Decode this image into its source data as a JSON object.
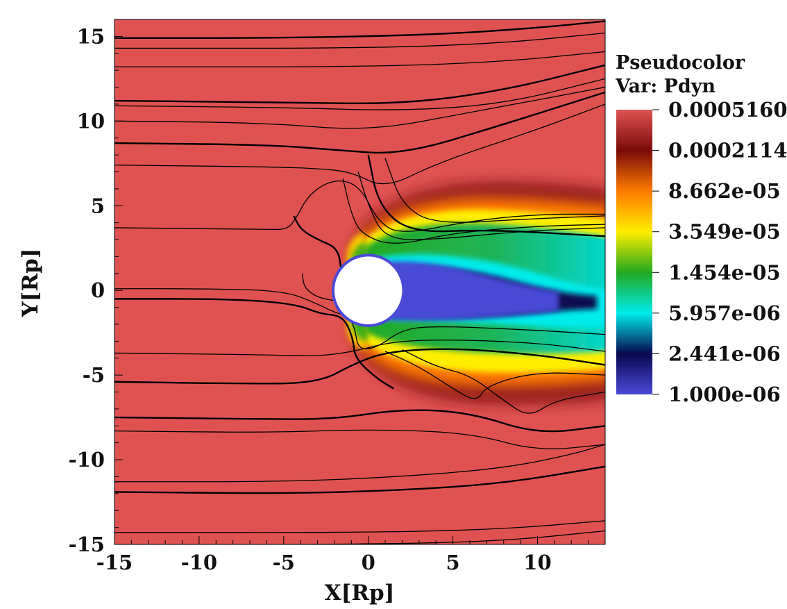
{
  "chart_data": {
    "type": "heatmap",
    "title": "Pseudocolor",
    "variable": "Var: Pdyn",
    "xlabel": "X[Rp]",
    "ylabel": "Y[Rp]",
    "xlim": [
      -15,
      14
    ],
    "ylim": [
      -15,
      16
    ],
    "x_ticks": [
      {
        "value": -15,
        "label": "-15"
      },
      {
        "value": -10,
        "label": "-10"
      },
      {
        "value": -5,
        "label": "-5"
      },
      {
        "value": 0,
        "label": "0"
      },
      {
        "value": 5,
        "label": "5"
      },
      {
        "value": 10,
        "label": "10"
      }
    ],
    "y_ticks": [
      {
        "value": 15,
        "label": "15"
      },
      {
        "value": 10,
        "label": "10"
      },
      {
        "value": 5,
        "label": "5"
      },
      {
        "value": 0,
        "label": "0"
      },
      {
        "value": -5,
        "label": "-5"
      },
      {
        "value": -10,
        "label": "-10"
      },
      {
        "value": -15,
        "label": "-15"
      }
    ],
    "colorbar": {
      "scale": "log",
      "min": 1e-06,
      "max": 0.000516,
      "labels": [
        "0.0005160",
        "0.0002114",
        "8.662e-05",
        "3.549e-05",
        "1.454e-05",
        "5.957e-06",
        "2.441e-06",
        "1.000e-06"
      ],
      "colors": [
        "#e05252",
        "#7a0a0a",
        "#ff7a00",
        "#ffee00",
        "#22a81e",
        "#00ecec",
        "#08084f",
        "#4a4ad8"
      ]
    },
    "field": {
      "background_color": "#e05252",
      "planet": {
        "center": [
          0,
          0
        ],
        "radius": 2,
        "fill": "#ffffff",
        "rim_color": "#4a4ad8"
      }
    },
    "streamlines": [
      {
        "points": [
          [
            -15,
            14.9
          ],
          [
            -5,
            14.9
          ],
          [
            4,
            15.1
          ],
          [
            10,
            15.5
          ],
          [
            14,
            15.9
          ]
        ]
      },
      {
        "points": [
          [
            -15,
            14.3
          ],
          [
            0,
            14.3
          ],
          [
            8,
            14.6
          ],
          [
            14,
            15.2
          ]
        ]
      },
      {
        "points": [
          [
            -15,
            13.2
          ],
          [
            0,
            13.2
          ],
          [
            8,
            13.5
          ],
          [
            14,
            14.1
          ]
        ]
      },
      {
        "points": [
          [
            -15,
            11.2
          ],
          [
            -5,
            11.1
          ],
          [
            2,
            11.0
          ],
          [
            8,
            11.8
          ],
          [
            14,
            13.3
          ]
        ]
      },
      {
        "points": [
          [
            -15,
            10.9
          ],
          [
            -5,
            10.8
          ],
          [
            2,
            10.6
          ],
          [
            8,
            11.0
          ],
          [
            14,
            12.5
          ]
        ]
      },
      {
        "points": [
          [
            -15,
            10.0
          ],
          [
            -6,
            9.9
          ],
          [
            0,
            9.4
          ],
          [
            6,
            10.5
          ],
          [
            14,
            12.0
          ]
        ]
      },
      {
        "points": [
          [
            -15,
            8.7
          ],
          [
            -6,
            8.6
          ],
          [
            -2,
            8.3
          ],
          [
            2,
            8.0
          ],
          [
            8,
            9.8
          ],
          [
            14,
            11.7
          ]
        ]
      },
      {
        "points": [
          [
            -15,
            7.4
          ],
          [
            -6,
            7.3
          ],
          [
            -3,
            7.2
          ],
          [
            -1,
            7.0
          ],
          [
            1,
            6.0
          ],
          [
            4,
            7.5
          ],
          [
            10,
            9.5
          ],
          [
            14,
            11.0
          ]
        ]
      },
      {
        "points": [
          [
            -15,
            3.7
          ],
          [
            -6,
            3.6
          ],
          [
            -4.8,
            3.6
          ],
          [
            -4.3,
            4.2
          ],
          [
            -3.5,
            5.7
          ],
          [
            -2,
            6.6
          ],
          [
            -0.5,
            6.2
          ],
          [
            0.6,
            4.0
          ],
          [
            2,
            3.3
          ],
          [
            6,
            4.1
          ],
          [
            10,
            4.5
          ],
          [
            14,
            4.5
          ]
        ]
      },
      {
        "points": [
          [
            -4.4,
            4.4
          ],
          [
            -4,
            3.6
          ],
          [
            -3,
            3.0
          ],
          [
            -1.8,
            2.5
          ],
          [
            -1.6,
            1.2
          ]
        ]
      },
      {
        "points": [
          [
            -1.5,
            6.6
          ],
          [
            -1,
            4.5
          ],
          [
            -0.4,
            3.3
          ],
          [
            1.5,
            2.6
          ],
          [
            5,
            3.4
          ],
          [
            10,
            3.8
          ],
          [
            14,
            3.9
          ]
        ]
      },
      {
        "points": [
          [
            -0.6,
            7.0
          ],
          [
            0,
            5.0
          ],
          [
            1,
            3.0
          ],
          [
            4,
            3.0
          ],
          [
            9,
            3.5
          ],
          [
            14,
            3.7
          ]
        ]
      },
      {
        "points": [
          [
            0,
            8.0
          ],
          [
            0.6,
            5.0
          ],
          [
            2.5,
            3.4
          ],
          [
            7,
            3.6
          ],
          [
            14,
            3.2
          ]
        ]
      },
      {
        "points": [
          [
            1,
            7.8
          ],
          [
            2,
            5.0
          ],
          [
            4,
            3.9
          ],
          [
            9,
            4.2
          ],
          [
            14,
            4.4
          ]
        ]
      },
      {
        "points": [
          [
            -15,
            0.1
          ],
          [
            -10,
            0.1
          ],
          [
            -5,
            0.0
          ],
          [
            -3,
            -0.8
          ],
          [
            -2,
            -1.3
          ],
          [
            -1.2,
            -1.5
          ],
          [
            -0.8,
            -2.2
          ],
          [
            -0.6,
            -3.5
          ],
          [
            0.5,
            -3.4
          ],
          [
            2,
            -2.3
          ],
          [
            4,
            -2.1
          ],
          [
            9,
            -2.3
          ],
          [
            14,
            -2.6
          ]
        ]
      },
      {
        "points": [
          [
            -15,
            -0.5
          ],
          [
            -8,
            -0.5
          ],
          [
            -4.3,
            -0.8
          ],
          [
            -2.8,
            -1.4
          ],
          [
            -1.5,
            -1.5
          ],
          [
            -0.9,
            -2.8
          ],
          [
            -0.8,
            -4.0
          ],
          [
            0.5,
            -5.2
          ],
          [
            1.5,
            -5.8
          ]
        ]
      },
      {
        "points": [
          [
            -3.9,
            1.0
          ],
          [
            -3.8,
            0.2
          ],
          [
            -3.2,
            -0.3
          ],
          [
            -2.6,
            -0.5
          ],
          [
            -2.0,
            -0.6
          ]
        ]
      },
      {
        "points": [
          [
            -15,
            -3.7
          ],
          [
            -6,
            -3.8
          ],
          [
            -3,
            -3.9
          ],
          [
            -0.8,
            -3.6
          ],
          [
            1.5,
            -3.0
          ],
          [
            5,
            -2.9
          ],
          [
            10,
            -3.1
          ],
          [
            14,
            -3.6
          ]
        ]
      },
      {
        "points": [
          [
            -15,
            -5.4
          ],
          [
            -8,
            -5.5
          ],
          [
            -3,
            -5.5
          ],
          [
            -0.8,
            -4.3
          ],
          [
            1.2,
            -3.6
          ],
          [
            5,
            -3.4
          ],
          [
            10,
            -3.8
          ],
          [
            14,
            -4.4
          ]
        ]
      },
      {
        "points": [
          [
            1.0,
            -3.6
          ],
          [
            3,
            -4.5
          ],
          [
            5,
            -5.8
          ],
          [
            6.4,
            -6.6
          ],
          [
            7,
            -5.6
          ],
          [
            10,
            -4.8
          ],
          [
            14,
            -5.0
          ]
        ]
      },
      {
        "points": [
          [
            2,
            -3.5
          ],
          [
            4,
            -4.5
          ],
          [
            6,
            -5.0
          ],
          [
            8,
            -6.5
          ],
          [
            9.5,
            -7.5
          ],
          [
            11,
            -6.5
          ],
          [
            14,
            -6.0
          ]
        ]
      },
      {
        "points": [
          [
            -15,
            -7.5
          ],
          [
            -6,
            -7.6
          ],
          [
            -2,
            -7.6
          ],
          [
            2,
            -7.0
          ],
          [
            6,
            -7.2
          ],
          [
            10,
            -8.5
          ],
          [
            14,
            -8.0
          ]
        ]
      },
      {
        "points": [
          [
            -15,
            -8.3
          ],
          [
            -6,
            -8.4
          ],
          [
            0,
            -8.2
          ],
          [
            6,
            -8.4
          ],
          [
            10,
            -9.5
          ],
          [
            14,
            -9.1
          ]
        ]
      },
      {
        "points": [
          [
            -15,
            -11.3
          ],
          [
            -5,
            -11.3
          ],
          [
            2,
            -11.0
          ],
          [
            8,
            -10.5
          ],
          [
            12,
            -9.7
          ],
          [
            14,
            -9.1
          ]
        ]
      },
      {
        "points": [
          [
            -15,
            -11.9
          ],
          [
            -5,
            -12.0
          ],
          [
            2,
            -11.8
          ],
          [
            8,
            -11.4
          ],
          [
            14,
            -10.4
          ]
        ]
      },
      {
        "points": [
          [
            -15,
            -14.3
          ],
          [
            0,
            -14.3
          ],
          [
            8,
            -14.1
          ],
          [
            14,
            -13.6
          ]
        ]
      },
      {
        "points": [
          [
            -15,
            -15.0
          ],
          [
            0,
            -15.0
          ],
          [
            8,
            -14.8
          ],
          [
            14,
            -14.2
          ]
        ]
      }
    ]
  }
}
